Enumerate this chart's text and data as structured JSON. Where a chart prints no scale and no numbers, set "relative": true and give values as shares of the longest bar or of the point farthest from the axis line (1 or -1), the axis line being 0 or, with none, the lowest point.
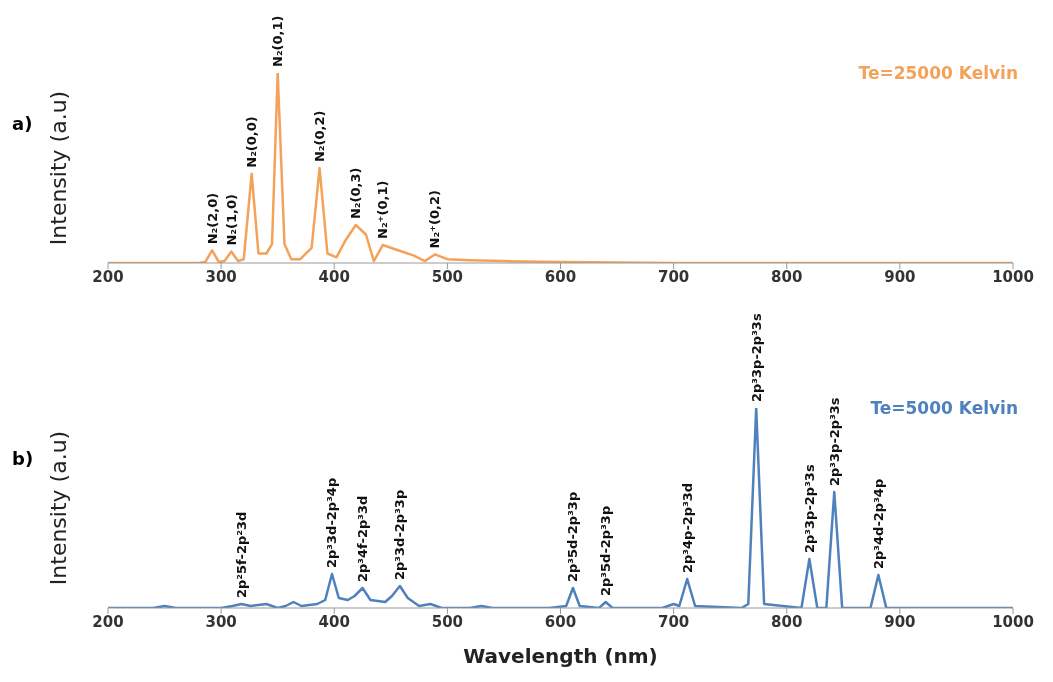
{
  "chart_data": [
    {
      "type": "line",
      "title": "a)",
      "ylabel": "Intensity (a.u)",
      "relative": true,
      "xlim": [
        200,
        1000
      ],
      "xticks": [
        200,
        300,
        400,
        500,
        600,
        700,
        800,
        900,
        1000
      ],
      "grid": false,
      "marker": "none",
      "line_style": "solid",
      "x": [
        200,
        280,
        286,
        292,
        298,
        303,
        309,
        315,
        320,
        327,
        333,
        340,
        345,
        350,
        356,
        362,
        370,
        380,
        387,
        394,
        402,
        410,
        419,
        428,
        435,
        443,
        455,
        470,
        480,
        489,
        500,
        520,
        550,
        600,
        700,
        800,
        1000
      ],
      "series": [
        {
          "name": "Te=25000 Kelvin",
          "color": "#f4a25a",
          "values": [
            0,
            0,
            0.005,
            0.067,
            0.005,
            0.01,
            0.06,
            0.01,
            0.02,
            0.47,
            0.05,
            0.05,
            0.1,
            1.0,
            0.1,
            0.02,
            0.02,
            0.08,
            0.5,
            0.05,
            0.03,
            0.12,
            0.2,
            0.15,
            0.01,
            0.095,
            0.07,
            0.04,
            0.01,
            0.045,
            0.02,
            0.015,
            0.01,
            0.005,
            0,
            0,
            0
          ]
        }
      ],
      "annotations": [
        {
          "text": "N₂(2,0)",
          "x": 292,
          "y": 0.067
        },
        {
          "text": "N₂(1,0)",
          "x": 309,
          "y": 0.06
        },
        {
          "text": "N₂(0,0)",
          "x": 327,
          "y": 0.47
        },
        {
          "text": "N₂(0,1)",
          "x": 350,
          "y": 1.0
        },
        {
          "text": "N₂(0,2)",
          "x": 387,
          "y": 0.5
        },
        {
          "text": "N₂(0,3)",
          "x": 419,
          "y": 0.2
        },
        {
          "text": "N₂⁺(0,1)",
          "x": 443,
          "y": 0.095
        },
        {
          "text": "N₂⁺(0,2)",
          "x": 489,
          "y": 0.045
        }
      ]
    },
    {
      "type": "line",
      "title": "b)",
      "ylabel": "Intensity (a.u)",
      "xlabel": "Wavelength (nm)",
      "relative": true,
      "xlim": [
        200,
        1000
      ],
      "xticks": [
        200,
        300,
        400,
        500,
        600,
        700,
        800,
        900,
        1000
      ],
      "grid": false,
      "marker": "none",
      "line_style": "solid",
      "x": [
        200,
        240,
        250,
        260,
        300,
        310,
        318,
        326,
        340,
        350,
        357,
        364,
        371,
        385,
        392,
        398,
        404,
        412,
        418,
        425,
        432,
        445,
        451,
        458,
        465,
        475,
        485,
        495,
        520,
        530,
        540,
        590,
        605,
        611,
        617,
        634,
        640,
        646,
        690,
        700,
        705,
        712,
        719,
        760,
        766,
        773,
        780,
        813,
        820,
        827,
        835,
        842,
        849,
        874,
        881,
        888,
        1000
      ],
      "series": [
        {
          "name": "Te=5000 Kelvin",
          "color": "#4f81bd",
          "values": [
            0,
            0,
            0.01,
            0,
            0,
            0.01,
            0.02,
            0.01,
            0.02,
            0,
            0.01,
            0.03,
            0.01,
            0.02,
            0.04,
            0.17,
            0.05,
            0.04,
            0.06,
            0.1,
            0.04,
            0.03,
            0.06,
            0.11,
            0.05,
            0.01,
            0.02,
            0,
            0,
            0.01,
            0,
            0,
            0.01,
            0.1,
            0.01,
            0,
            0.03,
            0,
            0,
            0.02,
            0.01,
            0.145,
            0.01,
            0,
            0.02,
            1.0,
            0.02,
            0,
            0.245,
            0,
            0,
            0.58,
            0,
            0,
            0.165,
            0,
            0
          ]
        }
      ],
      "annotations": [
        {
          "text": "2p²5f-2p²3d",
          "x": 318,
          "y": 0.02
        },
        {
          "text": "2p³3d-2p³4p",
          "x": 398,
          "y": 0.17
        },
        {
          "text": "2p³4f-2p³3d",
          "x": 425,
          "y": 0.1
        },
        {
          "text": "2p³3d-2p³3p",
          "x": 458,
          "y": 0.11
        },
        {
          "text": "2p³5d-2p³3p",
          "x": 611,
          "y": 0.1
        },
        {
          "text": "2p³5d-2p³3p",
          "x": 640,
          "y": 0.03
        },
        {
          "text": "2p³4p-2p³3d",
          "x": 712,
          "y": 0.145
        },
        {
          "text": "2p³3p-2p³3s",
          "x": 773,
          "y": 1.0
        },
        {
          "text": "2p³3p-2p³3s",
          "x": 820,
          "y": 0.245
        },
        {
          "text": "2p³3p-2p³3s",
          "x": 842,
          "y": 0.58
        },
        {
          "text": "2p³4d-2p³4p",
          "x": 881,
          "y": 0.165
        }
      ]
    }
  ]
}
